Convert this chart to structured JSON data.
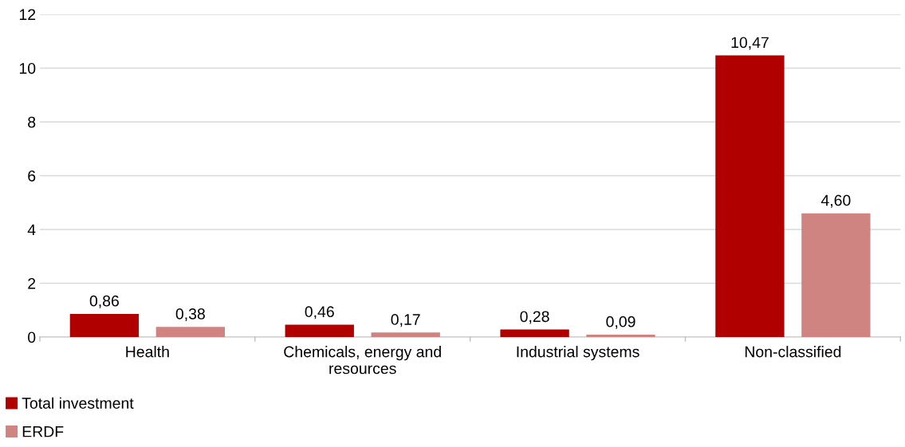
{
  "chart_data": {
    "type": "bar",
    "categories": [
      "Health",
      "Chemicals, energy and resources",
      "Industrial systems",
      "Non-classified"
    ],
    "series": [
      {
        "name": "Total investment",
        "color": "#b00000",
        "values": [
          0.86,
          0.46,
          0.28,
          10.47
        ],
        "value_labels": [
          "0,86",
          "0,46",
          "0,28",
          "10,47"
        ]
      },
      {
        "name": "ERDF",
        "color": "#d08482",
        "values": [
          0.38,
          0.17,
          0.09,
          4.6
        ],
        "value_labels": [
          "0,38",
          "0,17",
          "0,09",
          "4,60"
        ]
      }
    ],
    "ylim": [
      0,
      12
    ],
    "yticks": [
      0,
      2,
      4,
      6,
      8,
      10,
      12
    ],
    "grid": "y",
    "legend": "bottom left"
  }
}
